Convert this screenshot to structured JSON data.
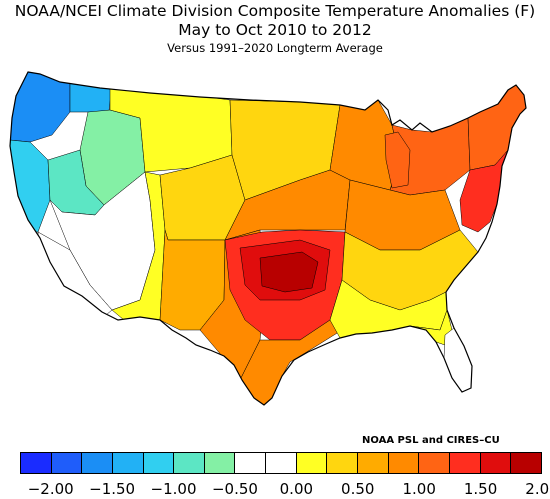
{
  "title": {
    "line1": "NOAA/NCEI Climate Division Composite Temperature Anomalies (F)",
    "line2": "May to Oct 2010 to 2012",
    "line3": "Versus 1991–2020 Longterm Average"
  },
  "credit": "NOAA PSL and CIRES–CU",
  "legend": {
    "colors": [
      "#1a2cff",
      "#1f5dfa",
      "#1b8ef5",
      "#22b1f5",
      "#31cff0",
      "#5ce6c4",
      "#84f0a5",
      "#ffffff",
      "#ffffff",
      "#ffff24",
      "#ffd60f",
      "#ffab00",
      "#ff8a00",
      "#ff6414",
      "#ff2e1f",
      "#e00d0d",
      "#b80000"
    ],
    "ticks": [
      "−2.00",
      "−1.50",
      "−1.00",
      "−0.50",
      "0.00",
      "0.50",
      "1.00",
      "1.50",
      "2.00"
    ]
  },
  "regions": [
    {
      "name": "pacific-northwest-coast",
      "color": "#1b8ef5"
    },
    {
      "name": "washington-cascades",
      "color": "#22b1f5"
    },
    {
      "name": "oregon-coast",
      "color": "#31cff0"
    },
    {
      "name": "idaho",
      "color": "#84f0a5"
    },
    {
      "name": "northern-california",
      "color": "#5ce6c4"
    },
    {
      "name": "nevada-utah",
      "color": "#ffffff"
    },
    {
      "name": "southern-california",
      "color": "#ffffff"
    },
    {
      "name": "northern-rockies",
      "color": "#ffff24"
    },
    {
      "name": "arizona",
      "color": "#ffff24"
    },
    {
      "name": "central-rockies",
      "color": "#ffd60f"
    },
    {
      "name": "new-mexico",
      "color": "#ffab00"
    },
    {
      "name": "northern-plains",
      "color": "#ffd60f"
    },
    {
      "name": "central-plains",
      "color": "#ff8a00"
    },
    {
      "name": "texas-west",
      "color": "#ff8a00"
    },
    {
      "name": "southern-plains-core",
      "color": "#ff2e1f"
    },
    {
      "name": "oklahoma-hotspot",
      "color": "#e00d0d"
    },
    {
      "name": "oklahoma-center",
      "color": "#b80000"
    },
    {
      "name": "texas-south",
      "color": "#ff8a00"
    },
    {
      "name": "upper-midwest",
      "color": "#ff8a00"
    },
    {
      "name": "great-lakes",
      "color": "#ff6414"
    },
    {
      "name": "ohio-valley",
      "color": "#ff8a00"
    },
    {
      "name": "southeast",
      "color": "#ffd60f"
    },
    {
      "name": "deep-south",
      "color": "#ffff24"
    },
    {
      "name": "florida",
      "color": "#ffff24"
    },
    {
      "name": "florida-peninsula",
      "color": "#ffffff"
    },
    {
      "name": "northeast",
      "color": "#ff6414"
    },
    {
      "name": "mid-atlantic",
      "color": "#ff2e1f"
    },
    {
      "name": "lower-michigan",
      "color": "#ff6414"
    }
  ]
}
